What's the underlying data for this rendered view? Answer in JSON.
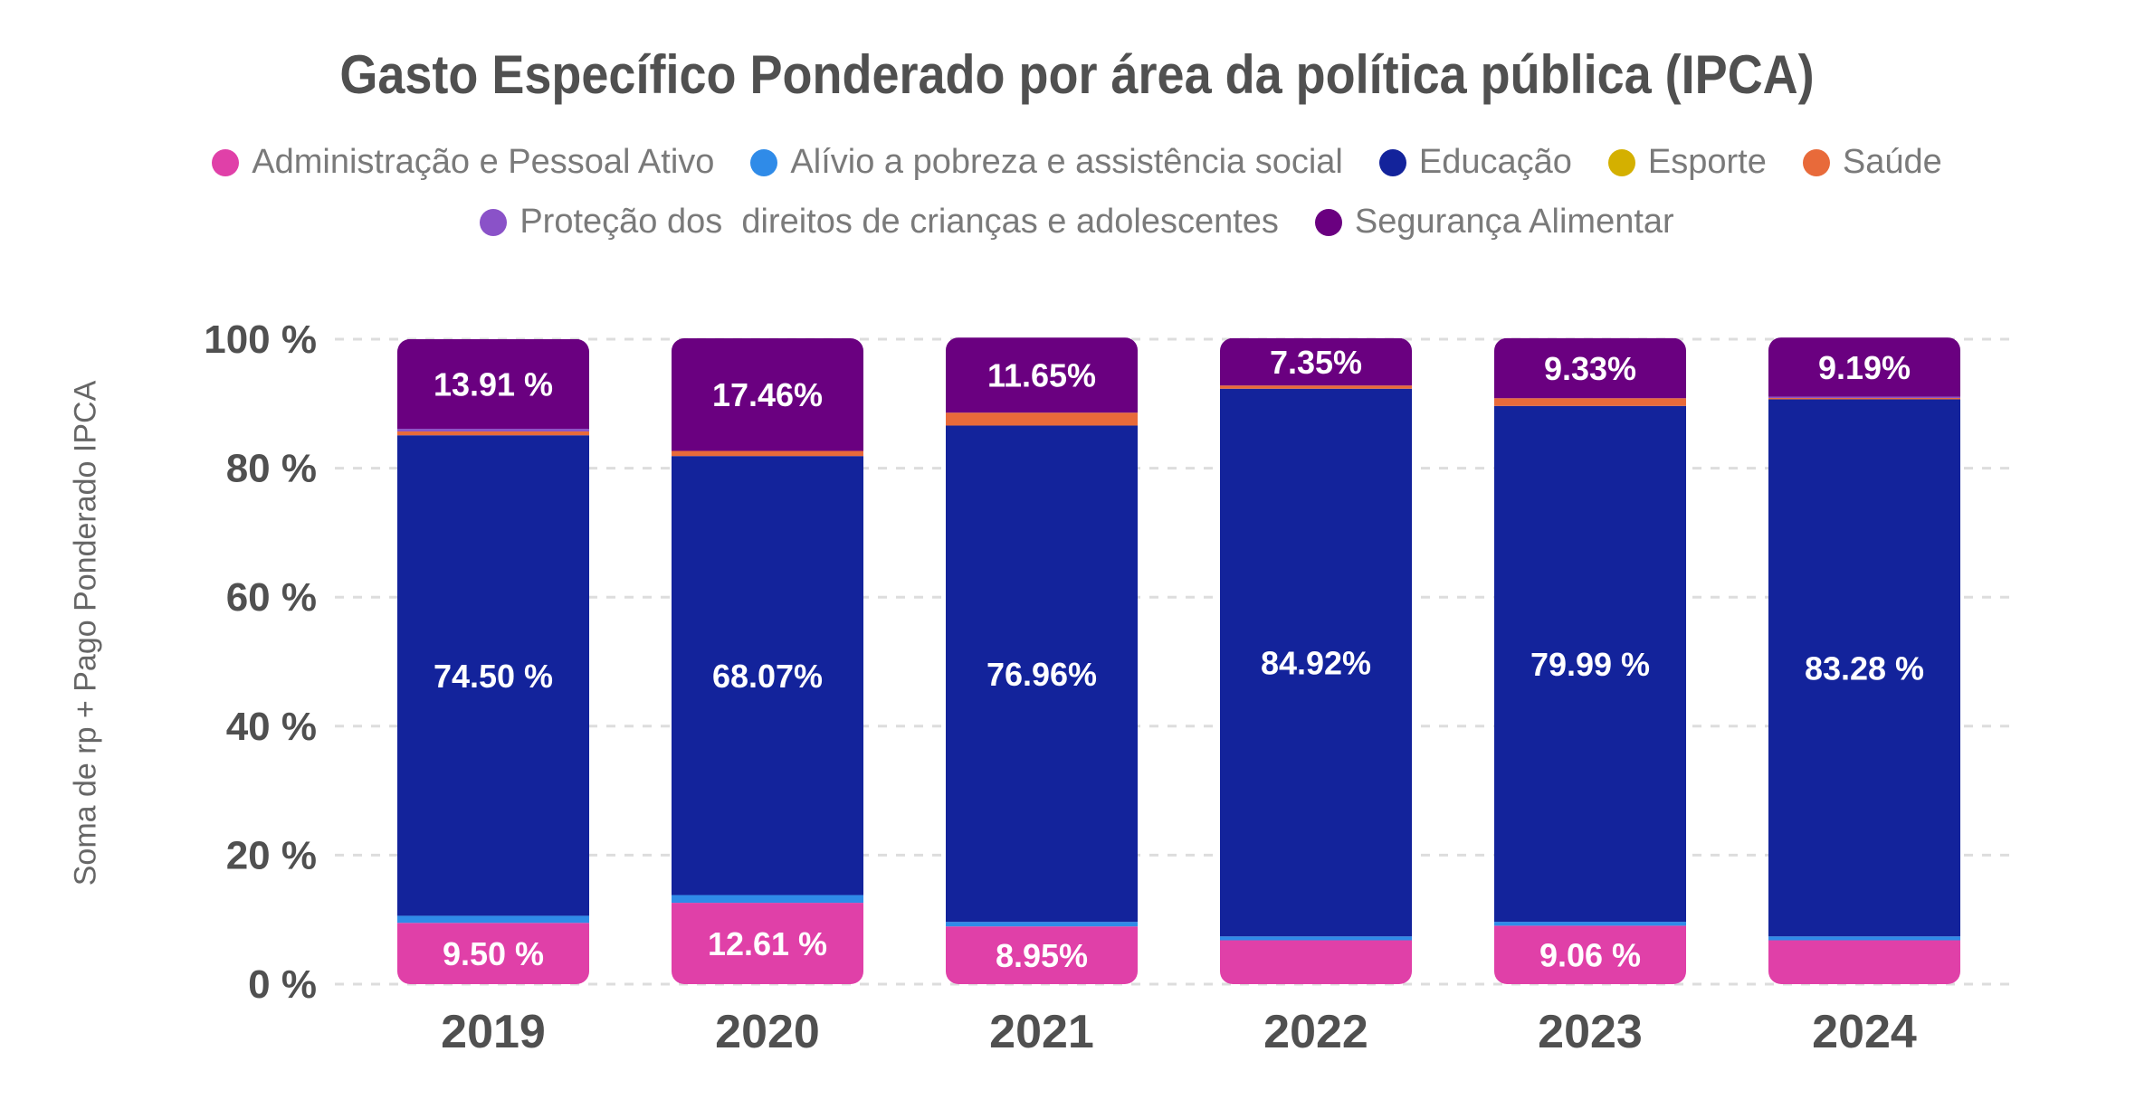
{
  "chart_data": {
    "type": "bar",
    "stacked": true,
    "title": "Gasto Específico Ponderado por área da política pública (IPCA)",
    "ylabel": "Soma de rp + Pago Ponderado IPCA",
    "xlabel": "",
    "ylim": [
      0,
      100
    ],
    "yticks": [
      "0 %",
      "20 %",
      "40 %",
      "60 %",
      "80 %",
      "100 %"
    ],
    "grid": true,
    "legend_position": "top",
    "categories": [
      "2019",
      "2020",
      "2021",
      "2022",
      "2023",
      "2024"
    ],
    "series": [
      {
        "name": "Administração e Pessoal Ativo",
        "color": "#e040a8",
        "values": [
          9.5,
          12.61,
          8.95,
          6.8,
          9.06,
          6.8
        ],
        "labels": [
          "9.50 %",
          "12.61 %",
          "8.95%",
          "",
          "9.06 %",
          ""
        ]
      },
      {
        "name": "Alívio a pobreza e assistência social",
        "color": "#2f8be8",
        "values": [
          1.1,
          1.2,
          0.7,
          0.6,
          0.6,
          0.6
        ],
        "labels": [
          "",
          "",
          "",
          "",
          "",
          ""
        ]
      },
      {
        "name": "Educação",
        "color": "#13239b",
        "values": [
          74.5,
          68.07,
          76.96,
          84.92,
          79.99,
          83.28
        ],
        "labels": [
          "74.50 %",
          "68.07%",
          "76.96%",
          "84.92%",
          "79.99 %",
          "83.28 %"
        ]
      },
      {
        "name": "Esporte",
        "color": "#d4b000",
        "values": [
          0,
          0,
          0,
          0,
          0,
          0
        ],
        "labels": [
          "",
          "",
          "",
          "",
          "",
          ""
        ]
      },
      {
        "name": "Saúde",
        "color": "#e86a3a",
        "values": [
          0.6,
          0.8,
          2.0,
          0.5,
          1.2,
          0.2
        ],
        "labels": [
          "",
          "",
          "",
          "",
          "",
          ""
        ]
      },
      {
        "name": "Proteção dos  direitos de crianças e adolescentes",
        "color": "#8a52c8",
        "values": [
          0.4,
          0,
          0,
          0,
          0,
          0.2
        ],
        "labels": [
          "",
          "",
          "",
          "",
          "",
          ""
        ]
      },
      {
        "name": "Segurança Alimentar",
        "color": "#6a0080",
        "values": [
          13.91,
          17.46,
          11.65,
          7.35,
          9.33,
          9.19
        ],
        "labels": [
          "13.91 %",
          "17.46%",
          "11.65%",
          "7.35%",
          "9.33%",
          "9.19%"
        ]
      }
    ]
  }
}
